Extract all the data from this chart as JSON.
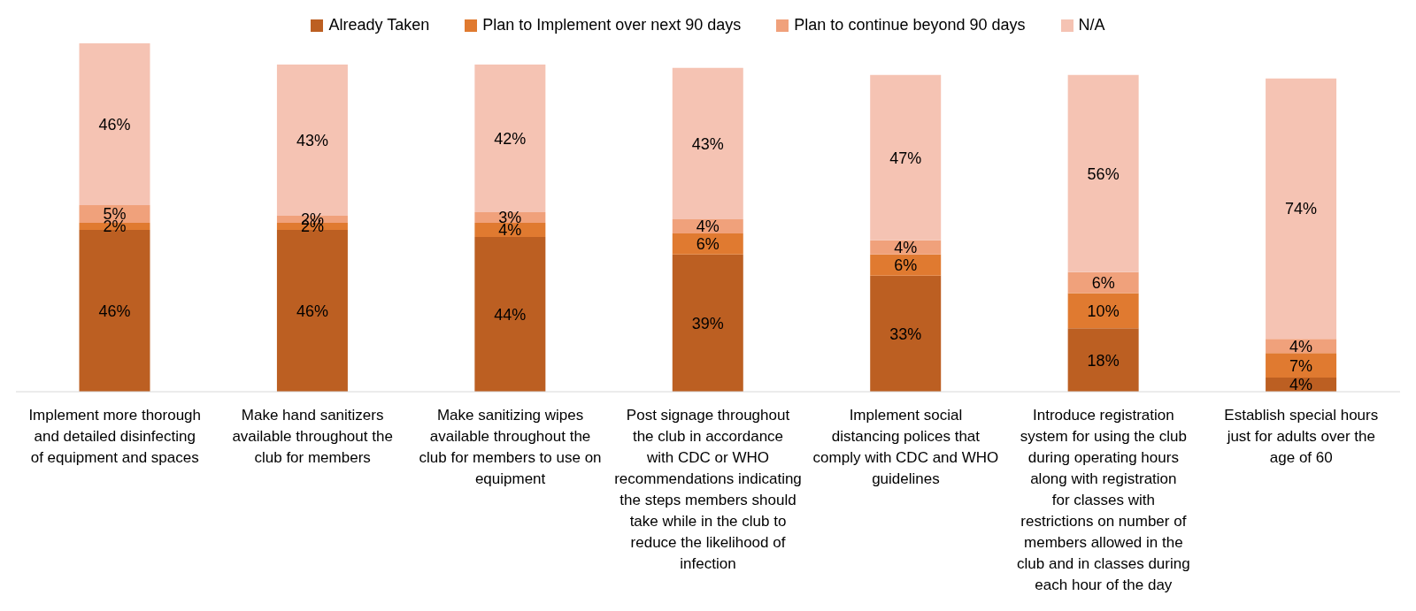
{
  "chart_data": {
    "type": "bar",
    "stacked": true,
    "legend": "top",
    "tick_labels": "x",
    "categories": [
      "Implement more thorough and detailed disinfecting of equipment and spaces",
      "Make hand sanitizers available throughout the club for members",
      "Make sanitizing wipes available throughout the club for members to use on equipment",
      "Post signage throughout the club in accordance with CDC or WHO recommendations indicating the steps members should take while in the club to reduce the likelihood of infection",
      "Implement social distancing polices that comply with CDC and WHO guidelines",
      "Introduce registration system for using the club during operating hours along with registration for classes with restrictions on number of members allowed in the club and in classes during each hour of the day",
      "Establish special hours just for adults over the age of 60"
    ],
    "series": [
      {
        "name": "Already Taken",
        "color": "#bc5f22",
        "values": [
          46,
          46,
          44,
          39,
          33,
          18,
          4
        ],
        "value_labels": [
          "46%",
          "46%",
          "44%",
          "39%",
          "33%",
          "18%",
          "4%"
        ]
      },
      {
        "name": "Plan to Implement over next 90 days",
        "color": "#e07a30",
        "values": [
          2,
          2,
          4,
          6,
          6,
          10,
          7
        ],
        "value_labels": [
          "2%",
          "2%",
          "4%",
          "6%",
          "6%",
          "10%",
          "7%"
        ]
      },
      {
        "name": "Plan to continue beyond 90 days",
        "color": "#f0a17b",
        "values": [
          5,
          2,
          3,
          4,
          4,
          6,
          4
        ],
        "value_labels": [
          "5%",
          "2%",
          "3%",
          "4%",
          "4%",
          "6%",
          "4%"
        ]
      },
      {
        "name": "N/A",
        "color": "#f5c3b3",
        "values": [
          46,
          43,
          42,
          43,
          47,
          56,
          74
        ],
        "value_labels": [
          "46%",
          "43%",
          "42%",
          "43%",
          "47%",
          "56%",
          "74%"
        ]
      }
    ]
  }
}
